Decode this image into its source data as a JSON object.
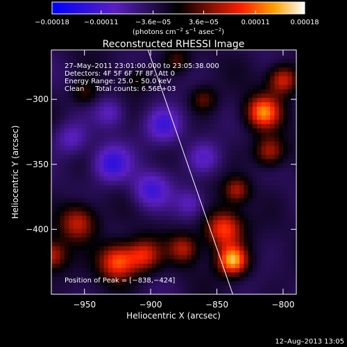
{
  "chart_data": {
    "type": "heatmap",
    "title": "Reconstructed RHESSI Image",
    "xlabel": "Heliocentric X (arcsec)",
    "ylabel": "Heliocentric Y (arcsec)",
    "xlim": [
      -975,
      -790
    ],
    "ylim": [
      -450,
      -262
    ],
    "x_ticks": [
      -950,
      -900,
      -850,
      -800
    ],
    "y_ticks": [
      -300,
      -350,
      -400
    ],
    "x_tick_labels": [
      "−950",
      "−900",
      "−850",
      "−800"
    ],
    "y_tick_labels": [
      "−300",
      "−350",
      "−400"
    ],
    "colorbar": {
      "range": [
        -0.00018,
        0.00018
      ],
      "ticks": [
        -0.00018,
        -0.00011,
        -3.6e-05,
        3.6e-05,
        0.00011,
        0.00018
      ],
      "tick_labels": [
        "−0.00018",
        "−0.00011",
        "−3.6e−05",
        "3.6e−05",
        "0.00011",
        "0.00018"
      ],
      "units_prefix": "(photons cm",
      "units_sup1": "−2",
      "units_mid1": " s",
      "units_sup2": "−1",
      "units_mid2": " asec",
      "units_sup3": "−2",
      "units_suffix": ")"
    },
    "annotations": [
      "27–May–2011 23:01:00.000 to 23:05:38.000",
      "Detectors: 4F 5F 6F 7F 8F, Att 0",
      "Energy Range: 25.0 – 50.0 keV",
      "Clean     Total counts: 6.56E+03"
    ],
    "peak_label": "Position of Peak = [−838,−424]",
    "limb_line": {
      "x": [
        -902,
        -838
      ],
      "y": [
        -262,
        -450
      ]
    },
    "sources": [
      {
        "x": -838,
        "y": -424,
        "sigma": 8,
        "amp": 1.0
      },
      {
        "x": -845,
        "y": -400,
        "sigma": 10,
        "amp": 0.75
      },
      {
        "x": -815,
        "y": -310,
        "sigma": 9,
        "amp": 0.85
      },
      {
        "x": -800,
        "y": -285,
        "sigma": 8,
        "amp": 0.65
      },
      {
        "x": -810,
        "y": -340,
        "sigma": 8,
        "amp": 0.55
      },
      {
        "x": -835,
        "y": -370,
        "sigma": 7,
        "amp": 0.5
      },
      {
        "x": -925,
        "y": -425,
        "sigma": 10,
        "amp": 0.8
      },
      {
        "x": -905,
        "y": -420,
        "sigma": 9,
        "amp": 0.6
      },
      {
        "x": -955,
        "y": -395,
        "sigma": 10,
        "amp": 0.6
      },
      {
        "x": -975,
        "y": -420,
        "sigma": 8,
        "amp": 0.55
      },
      {
        "x": -875,
        "y": -415,
        "sigma": 8,
        "amp": 0.5
      },
      {
        "x": -950,
        "y": -295,
        "sigma": 7,
        "amp": 0.3
      },
      {
        "x": -880,
        "y": -270,
        "sigma": 7,
        "amp": 0.3
      },
      {
        "x": -860,
        "y": -300,
        "sigma": 7,
        "amp": 0.35
      },
      {
        "x": -910,
        "y": -285,
        "sigma": 6,
        "amp": 0.22
      },
      {
        "x": -930,
        "y": -350,
        "sigma": 10,
        "amp": -0.55
      },
      {
        "x": -890,
        "y": -320,
        "sigma": 10,
        "amp": -0.5
      },
      {
        "x": -900,
        "y": -370,
        "sigma": 10,
        "amp": -0.45
      },
      {
        "x": -860,
        "y": -345,
        "sigma": 9,
        "amp": -0.35
      },
      {
        "x": -960,
        "y": -330,
        "sigma": 9,
        "amp": -0.35
      },
      {
        "x": -870,
        "y": -380,
        "sigma": 8,
        "amp": -0.3
      },
      {
        "x": -930,
        "y": -310,
        "sigma": 8,
        "amp": -0.3
      }
    ]
  },
  "footer": {
    "timestamp": "12–Aug–2013 13:05"
  }
}
